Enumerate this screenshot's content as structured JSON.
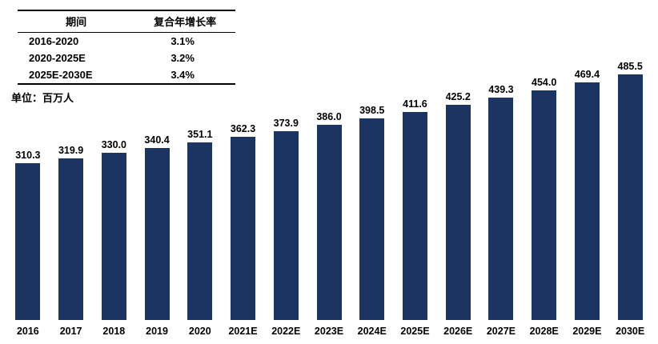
{
  "table": {
    "headers": [
      "期间",
      "复合年增长率"
    ],
    "rows": [
      {
        "period": "2016-2020",
        "cagr": "3.1%"
      },
      {
        "period": "2020-2025E",
        "cagr": "3.2%"
      },
      {
        "period": "2025E-2030E",
        "cagr": "3.4%"
      }
    ]
  },
  "unit_label": "单位：百万人",
  "chart_data": {
    "type": "bar",
    "categories": [
      "2016",
      "2017",
      "2018",
      "2019",
      "2020",
      "2021E",
      "2022E",
      "2023E",
      "2024E",
      "2025E",
      "2026E",
      "2027E",
      "2028E",
      "2029E",
      "2030E"
    ],
    "values": [
      310.3,
      319.9,
      330.0,
      340.4,
      351.1,
      362.3,
      373.9,
      386.0,
      398.5,
      411.6,
      425.2,
      439.3,
      454.0,
      469.4,
      485.5
    ],
    "title": "",
    "xlabel": "",
    "ylabel": "单位：百万人",
    "ylim": [
      0,
      500
    ],
    "grid": false,
    "legend_position": "none",
    "value_labels": true,
    "value_label_format": "one-decimal"
  },
  "colors": {
    "bar": "#1b3461",
    "text": "#000000",
    "background": "#ffffff"
  }
}
